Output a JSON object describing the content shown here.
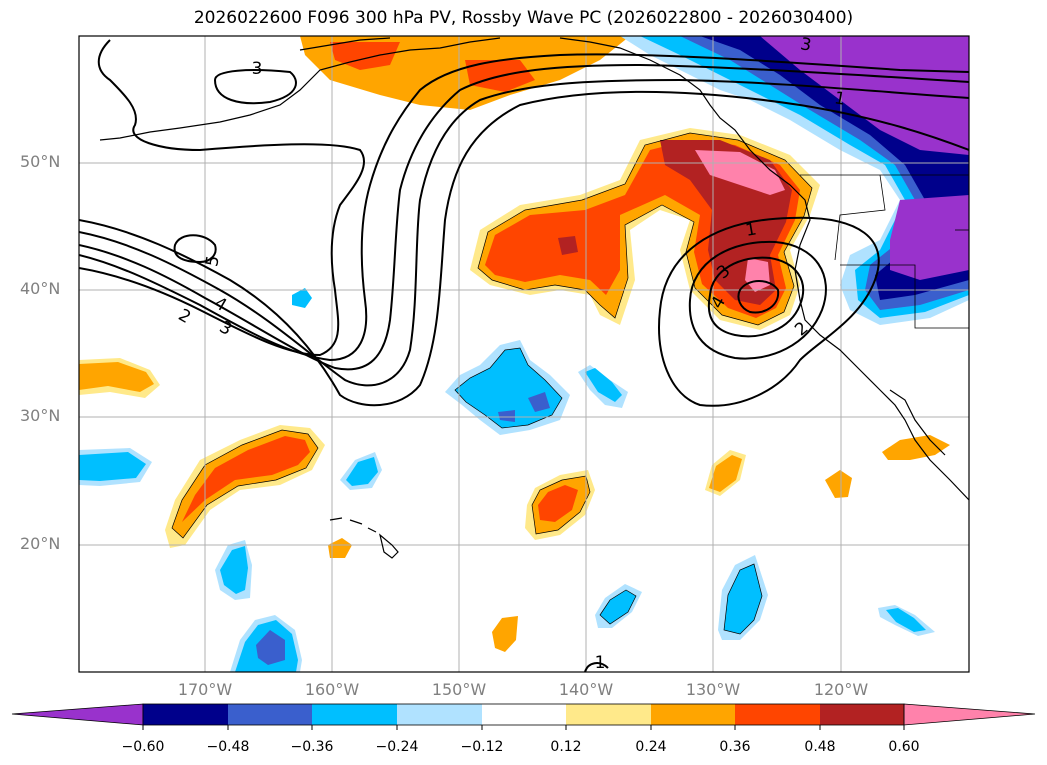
{
  "title": "2026022600 F096 300 hPa PV, Rossby Wave PC (2026022800 - 2026030400)",
  "axes": {
    "lat_labels": [
      "50°N",
      "40°N",
      "30°N",
      "20°N"
    ],
    "lon_labels": [
      "170°W",
      "160°W",
      "150°W",
      "140°W",
      "130°W",
      "120°W"
    ]
  },
  "contour_labels": [
    "3",
    "5",
    "4",
    "3",
    "2",
    "1",
    "3",
    "1",
    "3",
    "4",
    "2",
    "1"
  ],
  "colorbar": {
    "ticks": [
      "−0.60",
      "−0.48",
      "−0.36",
      "−0.24",
      "−0.12",
      "0.12",
      "0.24",
      "0.36",
      "0.48",
      "0.60"
    ],
    "colors": [
      "#9932cc",
      "#00008b",
      "#3a5fcd",
      "#00bfff",
      "#b0e2ff",
      "#ffffff",
      "#ffe98a",
      "#ffa500",
      "#ff4500",
      "#b22222",
      "#ff82ab"
    ]
  }
}
